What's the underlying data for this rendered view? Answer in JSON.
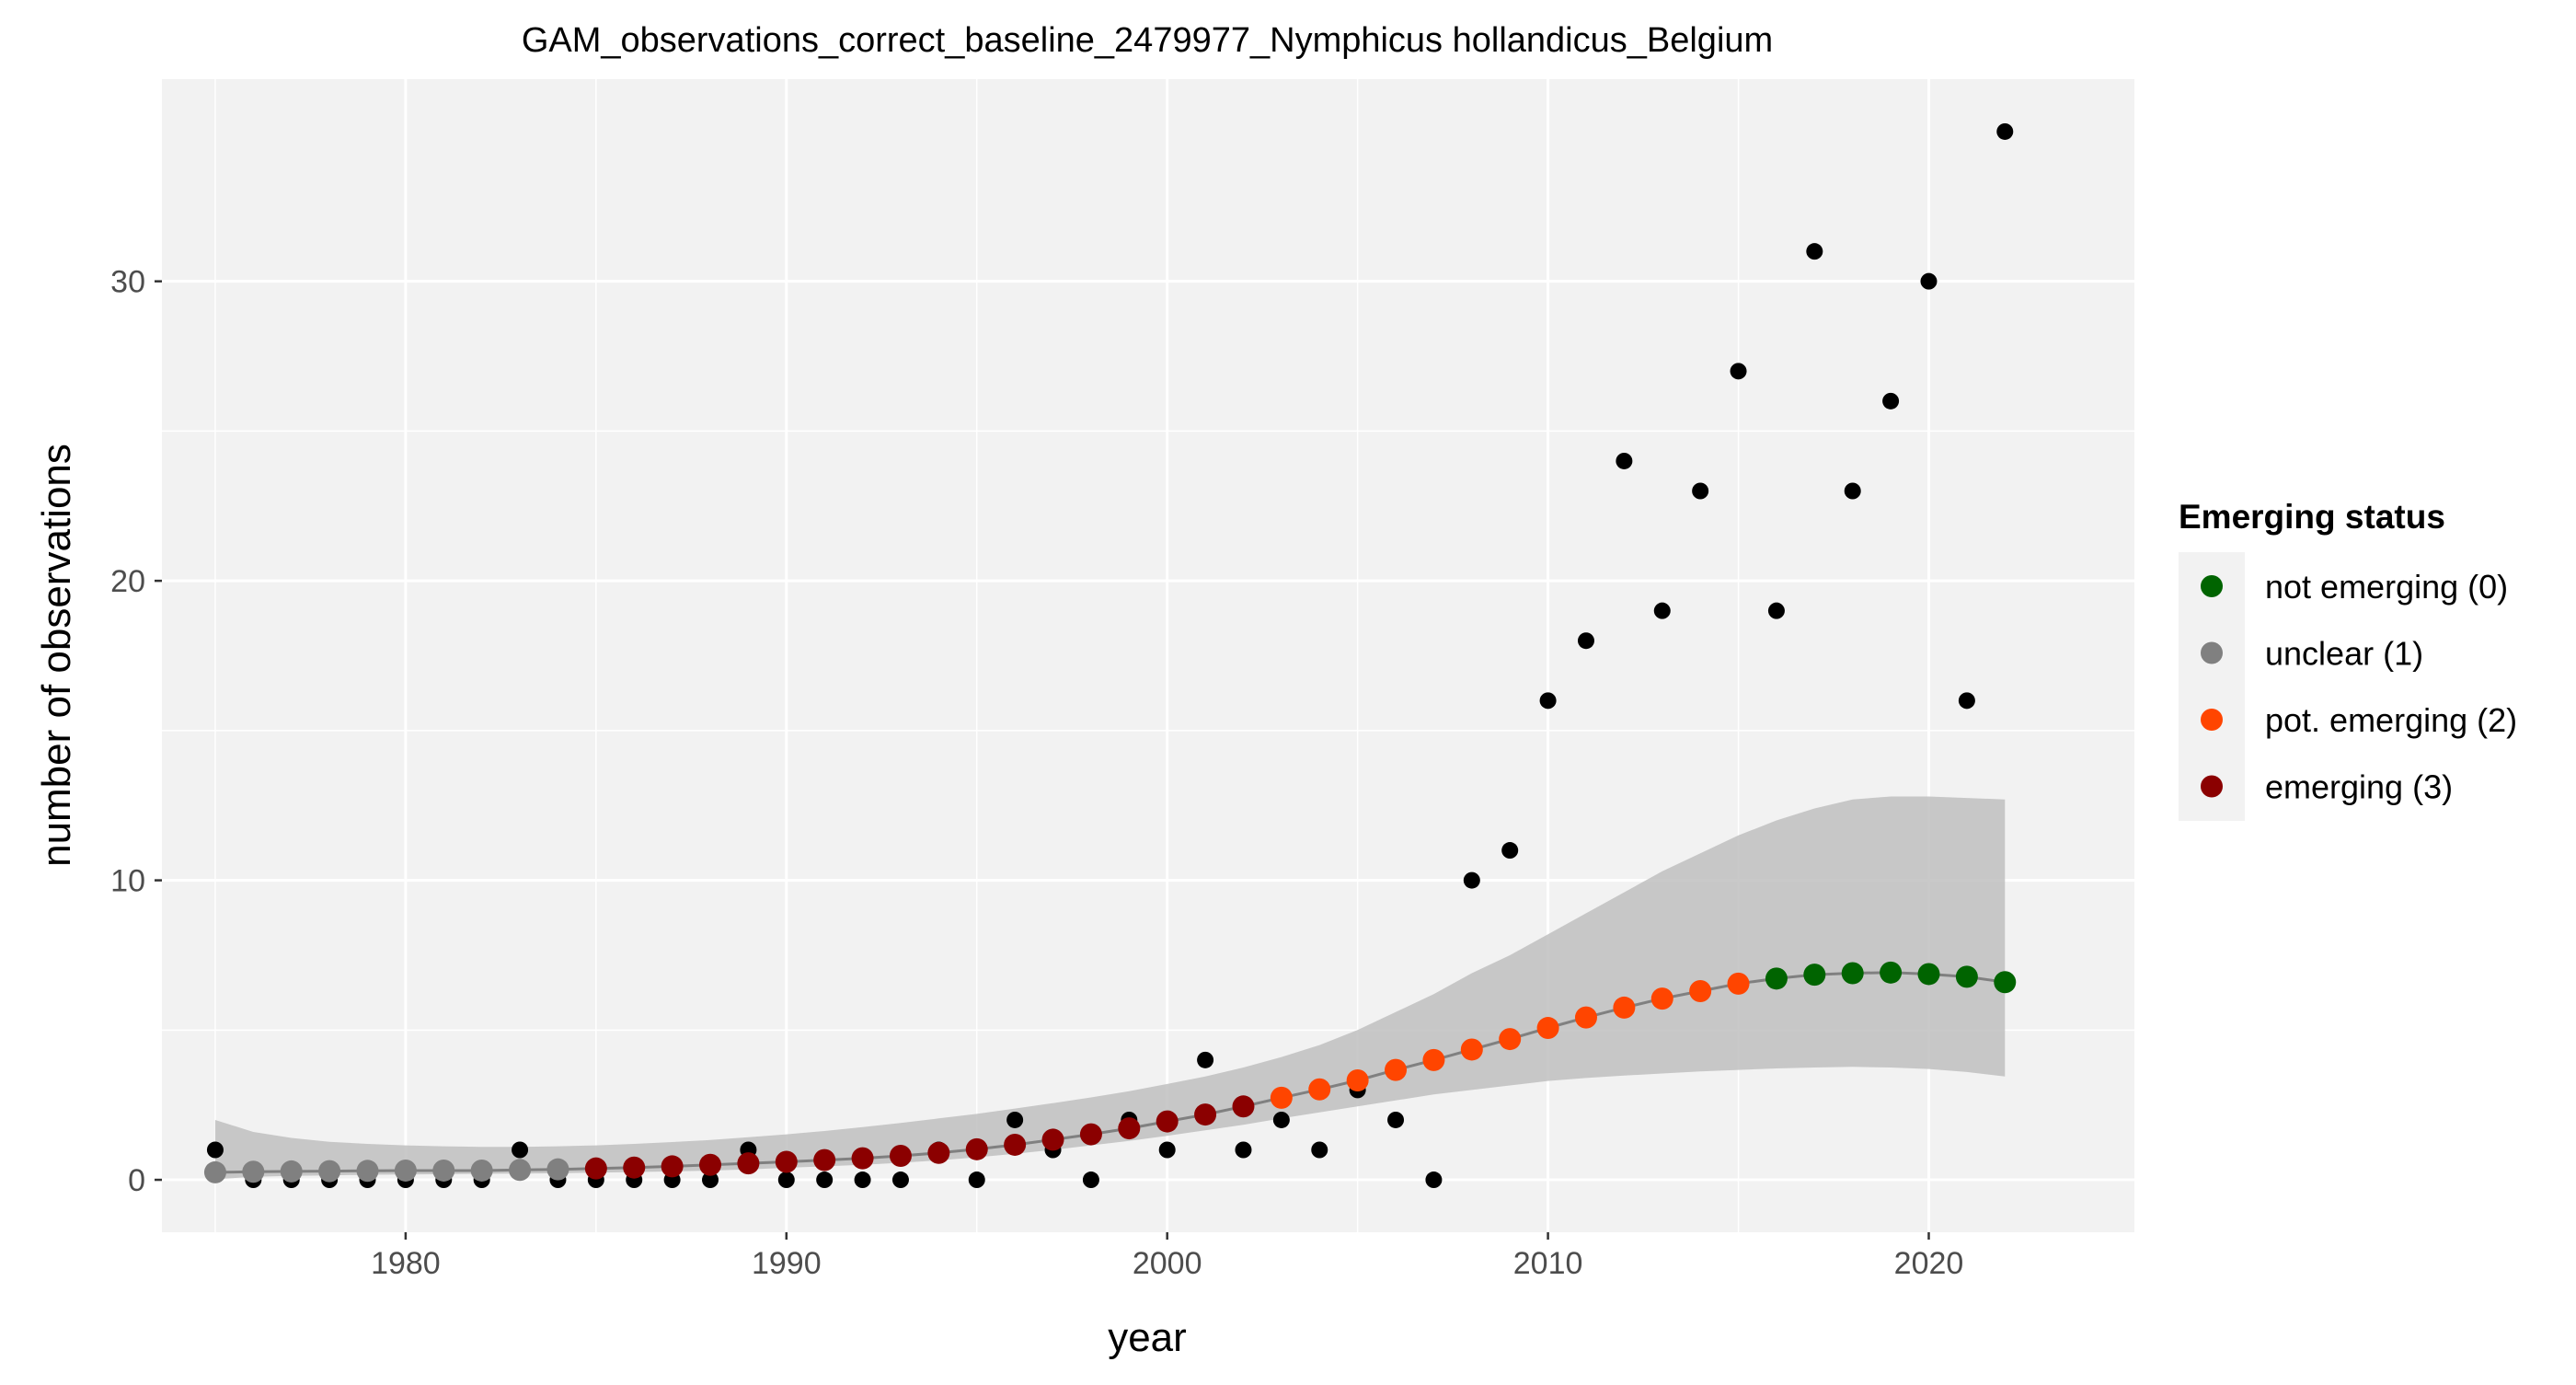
{
  "chart_data": {
    "type": "scatter",
    "title": "GAM_observations_correct_baseline_2479977_Nymphicus hollandicus_Belgium",
    "xlabel": "year",
    "ylabel": "number of observations",
    "xlim": [
      1973.6,
      2025.4
    ],
    "ylim": [
      -1.75,
      36.75
    ],
    "xticks": [
      1980,
      1990,
      2000,
      2010,
      2020
    ],
    "yticks": [
      0,
      10,
      20,
      30
    ],
    "grid": true,
    "legend_placement": "right",
    "legend": {
      "title": "Emerging status",
      "entries": [
        {
          "label": "not emerging (0)",
          "color": "#006400"
        },
        {
          "label": "unclear (1)",
          "color": "#808080"
        },
        {
          "label": "pot. emerging (2)",
          "color": "#FF4500"
        },
        {
          "label": "emerging (3)",
          "color": "#8B0000"
        }
      ]
    },
    "colors": {
      "panel_background": "#F2F2F2",
      "gridline": "#FFFFFF",
      "ribbon": "#BFBFBF",
      "fit_line": "#808080",
      "observation_point": "#000000"
    },
    "observations": {
      "x": [
        1975,
        1976,
        1977,
        1978,
        1979,
        1980,
        1981,
        1982,
        1983,
        1984,
        1985,
        1986,
        1987,
        1988,
        1989,
        1990,
        1991,
        1992,
        1993,
        1994,
        1995,
        1996,
        1997,
        1998,
        1999,
        2000,
        2001,
        2002,
        2003,
        2004,
        2005,
        2006,
        2007,
        2008,
        2009,
        2010,
        2011,
        2012,
        2013,
        2014,
        2015,
        2016,
        2017,
        2018,
        2019,
        2020,
        2021,
        2022
      ],
      "y": [
        1,
        0,
        0,
        0,
        0,
        0,
        0,
        0,
        1,
        0,
        0,
        0,
        0,
        0,
        1,
        0,
        0,
        0,
        0,
        1,
        0,
        2,
        1,
        0,
        2,
        1,
        4,
        1,
        2,
        1,
        3,
        2,
        0,
        10,
        11,
        16,
        18,
        24,
        19,
        23,
        27,
        19,
        31,
        23,
        26,
        30,
        16,
        35
      ]
    },
    "fit": {
      "x": [
        1975,
        1976,
        1977,
        1978,
        1979,
        1980,
        1981,
        1982,
        1983,
        1984,
        1985,
        1986,
        1987,
        1988,
        1989,
        1990,
        1991,
        1992,
        1993,
        1994,
        1995,
        1996,
        1997,
        1998,
        1999,
        2000,
        2001,
        2002,
        2003,
        2004,
        2005,
        2006,
        2007,
        2008,
        2009,
        2010,
        2011,
        2012,
        2013,
        2014,
        2015,
        2016,
        2017,
        2018,
        2019,
        2020,
        2021,
        2022
      ],
      "y": [
        0.25,
        0.27,
        0.28,
        0.29,
        0.3,
        0.31,
        0.31,
        0.31,
        0.33,
        0.35,
        0.38,
        0.41,
        0.45,
        0.5,
        0.55,
        0.6,
        0.66,
        0.72,
        0.8,
        0.9,
        1.02,
        1.17,
        1.34,
        1.52,
        1.72,
        1.95,
        2.18,
        2.45,
        2.74,
        3.02,
        3.32,
        3.67,
        4.0,
        4.35,
        4.7,
        5.07,
        5.42,
        5.75,
        6.05,
        6.3,
        6.55,
        6.72,
        6.85,
        6.9,
        6.92,
        6.87,
        6.78,
        6.6
      ],
      "lower": [
        0.02,
        0.1,
        0.13,
        0.15,
        0.17,
        0.18,
        0.19,
        0.2,
        0.21,
        0.22,
        0.24,
        0.26,
        0.28,
        0.31,
        0.35,
        0.4,
        0.45,
        0.5,
        0.57,
        0.65,
        0.75,
        0.87,
        1.0,
        1.15,
        1.3,
        1.47,
        1.65,
        1.84,
        2.05,
        2.25,
        2.45,
        2.65,
        2.85,
        3.0,
        3.15,
        3.3,
        3.4,
        3.48,
        3.55,
        3.62,
        3.67,
        3.72,
        3.75,
        3.77,
        3.75,
        3.7,
        3.6,
        3.45
      ],
      "upper": [
        2.0,
        1.6,
        1.4,
        1.27,
        1.2,
        1.15,
        1.12,
        1.1,
        1.1,
        1.12,
        1.15,
        1.2,
        1.26,
        1.33,
        1.42,
        1.52,
        1.63,
        1.76,
        1.9,
        2.05,
        2.2,
        2.38,
        2.56,
        2.75,
        2.96,
        3.2,
        3.45,
        3.75,
        4.1,
        4.5,
        5.0,
        5.6,
        6.2,
        6.9,
        7.5,
        8.2,
        8.9,
        9.6,
        10.3,
        10.9,
        11.5,
        12.0,
        12.4,
        12.7,
        12.8,
        12.8,
        12.75,
        12.7
      ],
      "status": [
        1,
        1,
        1,
        1,
        1,
        1,
        1,
        1,
        1,
        1,
        3,
        3,
        3,
        3,
        3,
        3,
        3,
        3,
        3,
        3,
        3,
        3,
        3,
        3,
        3,
        3,
        3,
        3,
        2,
        2,
        2,
        2,
        2,
        2,
        2,
        2,
        2,
        2,
        2,
        2,
        2,
        0,
        0,
        0,
        0,
        0,
        0,
        0
      ]
    }
  }
}
